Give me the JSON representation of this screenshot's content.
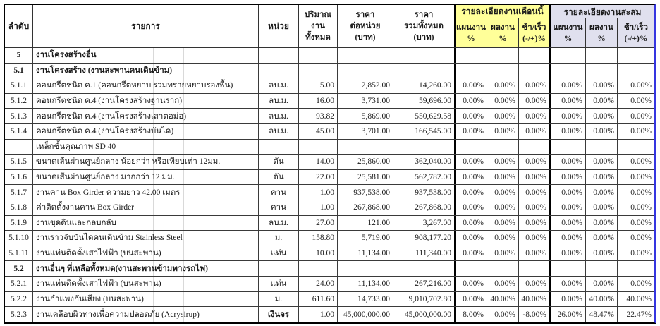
{
  "table": {
    "headers": {
      "col_no": "ลำดับ",
      "col_item": "รายการ",
      "col_unit": "หน่วย",
      "col_qty": [
        "ปริมาณ",
        "งาน",
        "ทั้งหมด"
      ],
      "col_unit_price": [
        "ราคา",
        "ต่อหน่วย",
        "(บาท)"
      ],
      "col_total_price": [
        "ราคา",
        "รวมทั้งหมด",
        "(บาท)"
      ],
      "group_month": "รายละเอียดงานเดือนนี้",
      "group_cumulative": "รายละเอียดงานสะสม",
      "sub_plan": [
        "แผนงาน",
        "%"
      ],
      "sub_actual": [
        "ผลงาน",
        "%"
      ],
      "sub_diff": [
        "ช้า/เร็ว",
        "(-/+)%"
      ]
    },
    "colors": {
      "month_group_bg": "#FFFF99",
      "cumulative_group_bg": "#E0E0EE",
      "page_break_line": "#3535E0"
    },
    "rows": [
      {
        "type": "section",
        "no": "5",
        "item": "งานโครงสร้างอื่น"
      },
      {
        "type": "section",
        "no": "5.1",
        "item": "งานโครงสร้าง (งานสะพานคนเดินข้าม)"
      },
      {
        "type": "item",
        "no": "5.1.1",
        "item": "คอนกรีตชนิด ค.1 (คอนกรีตหยาบ รวมทรายหยาบรองพื้น)",
        "unit": "ลบ.ม.",
        "qty": "5.00",
        "unit_price": "2,852.00",
        "total_price": "14,260.00",
        "m_plan": "0.00%",
        "m_actual": "0.00%",
        "m_diff": "0.00%",
        "c_plan": "0.00%",
        "c_actual": "0.00%",
        "c_diff": "0.00%"
      },
      {
        "type": "item",
        "no": "5.1.2",
        "item": "คอนกรีตชนิด ค.4 (งานโครงสร้างฐานราก)",
        "unit": "ลบ.ม.",
        "qty": "16.00",
        "unit_price": "3,731.00",
        "total_price": "59,696.00",
        "m_plan": "0.00%",
        "m_actual": "0.00%",
        "m_diff": "0.00%",
        "c_plan": "0.00%",
        "c_actual": "0.00%",
        "c_diff": "0.00%"
      },
      {
        "type": "item",
        "no": "5.1.3",
        "item": "คอนกรีตชนิด ค.4 (งานโครงสร้างเสาตอม่อ)",
        "unit": "ลบ.ม.",
        "qty": "93.82",
        "unit_price": "5,869.00",
        "total_price": "550,629.58",
        "m_plan": "0.00%",
        "m_actual": "0.00%",
        "m_diff": "0.00%",
        "c_plan": "0.00%",
        "c_actual": "0.00%",
        "c_diff": "0.00%"
      },
      {
        "type": "item",
        "no": "5.1.4",
        "item": "คอนกรีตชนิด ค.4 (งานโครงสร้างบันได)",
        "unit": "ลบ.ม.",
        "qty": "45.00",
        "unit_price": "3,701.00",
        "total_price": "166,545.00",
        "m_plan": "0.00%",
        "m_actual": "0.00%",
        "m_diff": "0.00%",
        "c_plan": "0.00%",
        "c_actual": "0.00%",
        "c_diff": "0.00%"
      },
      {
        "type": "item",
        "no": "",
        "item": "เหล็กชั้นคุณภาพ SD 40"
      },
      {
        "type": "item",
        "no": "5.1.5",
        "item": "ขนาดเส้นผ่านศูนย์กลาง น้อยกว่า หรือเทียบเท่า 12มม.",
        "unit": "ตัน",
        "qty": "14.00",
        "unit_price": "25,860.00",
        "total_price": "362,040.00",
        "m_plan": "0.00%",
        "m_actual": "0.00%",
        "m_diff": "0.00%",
        "c_plan": "0.00%",
        "c_actual": "0.00%",
        "c_diff": "0.00%"
      },
      {
        "type": "item",
        "no": "5.1.6",
        "item": "ขนาดเส้นผ่านศูนย์กลาง มากกว่า 12 มม.",
        "unit": "ตัน",
        "qty": "22.00",
        "unit_price": "25,581.00",
        "total_price": "562,782.00",
        "m_plan": "0.00%",
        "m_actual": "0.00%",
        "m_diff": "0.00%",
        "c_plan": "0.00%",
        "c_actual": "0.00%",
        "c_diff": "0.00%"
      },
      {
        "type": "item",
        "no": "5.1.7",
        "item": "งานคาน Box Girder ความยาว 42.00 เมตร",
        "unit": "คาน",
        "qty": "1.00",
        "unit_price": "937,538.00",
        "total_price": "937,538.00",
        "m_plan": "0.00%",
        "m_actual": "0.00%",
        "m_diff": "0.00%",
        "c_plan": "0.00%",
        "c_actual": "0.00%",
        "c_diff": "0.00%"
      },
      {
        "type": "item",
        "no": "5.1.8",
        "item": "ค่าติดตั้งงานคาน Box Girder",
        "unit": "คาน",
        "qty": "1.00",
        "unit_price": "267,868.00",
        "total_price": "267,868.00",
        "m_plan": "0.00%",
        "m_actual": "0.00%",
        "m_diff": "0.00%",
        "c_plan": "0.00%",
        "c_actual": "0.00%",
        "c_diff": "0.00%"
      },
      {
        "type": "item",
        "no": "5.1.9",
        "item": "งานขุดดินและกลบกลับ",
        "unit": "ลบ.ม.",
        "qty": "27.00",
        "unit_price": "121.00",
        "total_price": "3,267.00",
        "m_plan": "0.00%",
        "m_actual": "0.00%",
        "m_diff": "0.00%",
        "c_plan": "0.00%",
        "c_actual": "0.00%",
        "c_diff": "0.00%"
      },
      {
        "type": "item",
        "no": "5.1.10",
        "item": "งานราวจับบันไดคนเดินข้าม Stainless Steel",
        "unit": "ม.",
        "qty": "158.80",
        "unit_price": "5,719.00",
        "total_price": "908,177.20",
        "m_plan": "0.00%",
        "m_actual": "0.00%",
        "m_diff": "0.00%",
        "c_plan": "0.00%",
        "c_actual": "0.00%",
        "c_diff": "0.00%"
      },
      {
        "type": "item",
        "no": "5.1.11",
        "item": "งานแท่นติดตั้งเสาไฟฟ้า (บนสะพาน)",
        "unit": "แท่น",
        "qty": "10.00",
        "unit_price": "11,134.00",
        "total_price": "111,340.00",
        "m_plan": "0.00%",
        "m_actual": "0.00%",
        "m_diff": "0.00%",
        "c_plan": "0.00%",
        "c_actual": "0.00%",
        "c_diff": "0.00%"
      },
      {
        "type": "section",
        "no": "5.2",
        "item": "งานอื่นๆ ที่เหลือทั้งหมด(งานสะพานข้ามทางรถไฟ)"
      },
      {
        "type": "item",
        "no": "5.2.1",
        "item": "งานแท่นติดตั้งเสาไฟฟ้า (บนสะพาน)",
        "unit": "แท่น",
        "qty": "24.00",
        "unit_price": "11,134.00",
        "total_price": "267,216.00",
        "m_plan": "0.00%",
        "m_actual": "0.00%",
        "m_diff": "0.00%",
        "c_plan": "0.00%",
        "c_actual": "0.00%",
        "c_diff": "0.00%"
      },
      {
        "type": "item",
        "no": "5.2.2",
        "item": "งานกำแพงกันเสียง (บนสะพาน)",
        "unit": "ม.",
        "qty": "611.60",
        "unit_price": "14,733.00",
        "total_price": "9,010,702.80",
        "m_plan": "0.00%",
        "m_actual": "40.00%",
        "m_diff": "40.00%",
        "c_plan": "0.00%",
        "c_actual": "40.00%",
        "c_diff": "40.00%"
      },
      {
        "type": "item",
        "no": "5.2.3",
        "item": "งานเคลือบผิวทางเพื่อความปลอดภัย (Acrysirup)",
        "unit": "เงินจร",
        "unit_bold": true,
        "qty": "1.00",
        "unit_price": "45,000,000.00",
        "total_price": "45,000,000.00",
        "m_plan": "8.00%",
        "m_actual": "0.00%",
        "m_diff": "-8.00%",
        "c_plan": "26.00%",
        "c_actual": "48.47%",
        "c_diff": "22.47%"
      }
    ]
  }
}
